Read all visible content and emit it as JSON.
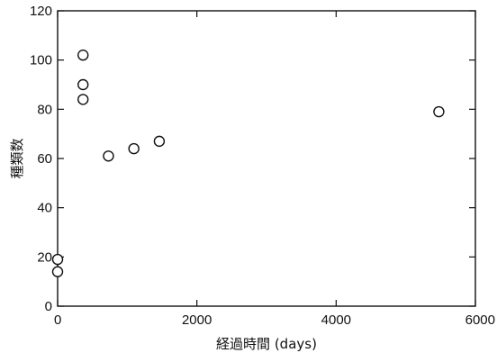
{
  "chart_data": {
    "type": "scatter",
    "xlabel": "経過時間 (days)",
    "ylabel": "種類数",
    "xlim": [
      0,
      6000
    ],
    "ylim": [
      0,
      120
    ],
    "x_ticks": [
      0,
      2000,
      4000,
      6000
    ],
    "y_ticks": [
      0,
      20,
      40,
      60,
      80,
      100,
      120
    ],
    "x_tick_labels": [
      "0",
      "2000",
      "4000",
      "6000"
    ],
    "y_tick_labels": [
      "0",
      "20",
      "40",
      "60",
      "80",
      "100",
      "120"
    ],
    "grid": false,
    "marker": "open-circle",
    "series": [
      {
        "points": [
          {
            "x": 0,
            "y": 19
          },
          {
            "x": 0,
            "y": 14
          },
          {
            "x": 365,
            "y": 102
          },
          {
            "x": 365,
            "y": 90
          },
          {
            "x": 365,
            "y": 84
          },
          {
            "x": 730,
            "y": 61
          },
          {
            "x": 1095,
            "y": 64
          },
          {
            "x": 1460,
            "y": 67
          },
          {
            "x": 5475,
            "y": 79
          }
        ]
      }
    ]
  }
}
